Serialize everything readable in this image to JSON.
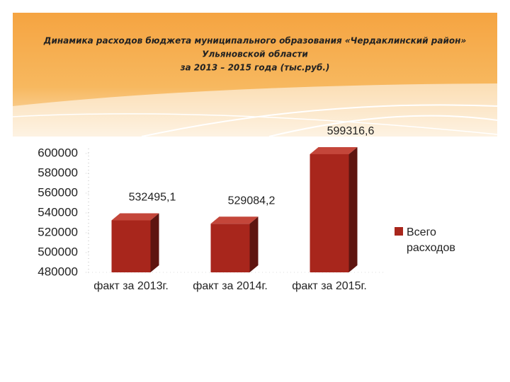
{
  "chart_data": {
    "type": "bar",
    "title": [
      "Динамика расходов бюджета муниципального образования «Чердаклинский район»",
      "Ульяновской области",
      "за 2013 – 2015 года (тыс.руб.)"
    ],
    "categories": [
      "факт за 2013г.",
      "факт за 2014г.",
      "факт за 2015г."
    ],
    "series": [
      {
        "name": "Всего расходов",
        "color": "#a8261c",
        "values": [
          532495.1,
          529084.2,
          599316.6
        ],
        "value_labels": [
          "532495,1",
          "529084,2",
          "599316,6"
        ]
      }
    ],
    "ylim": [
      480000,
      600000
    ],
    "yticks": [
      480000,
      500000,
      520000,
      540000,
      560000,
      580000,
      600000
    ],
    "legend": "right"
  }
}
